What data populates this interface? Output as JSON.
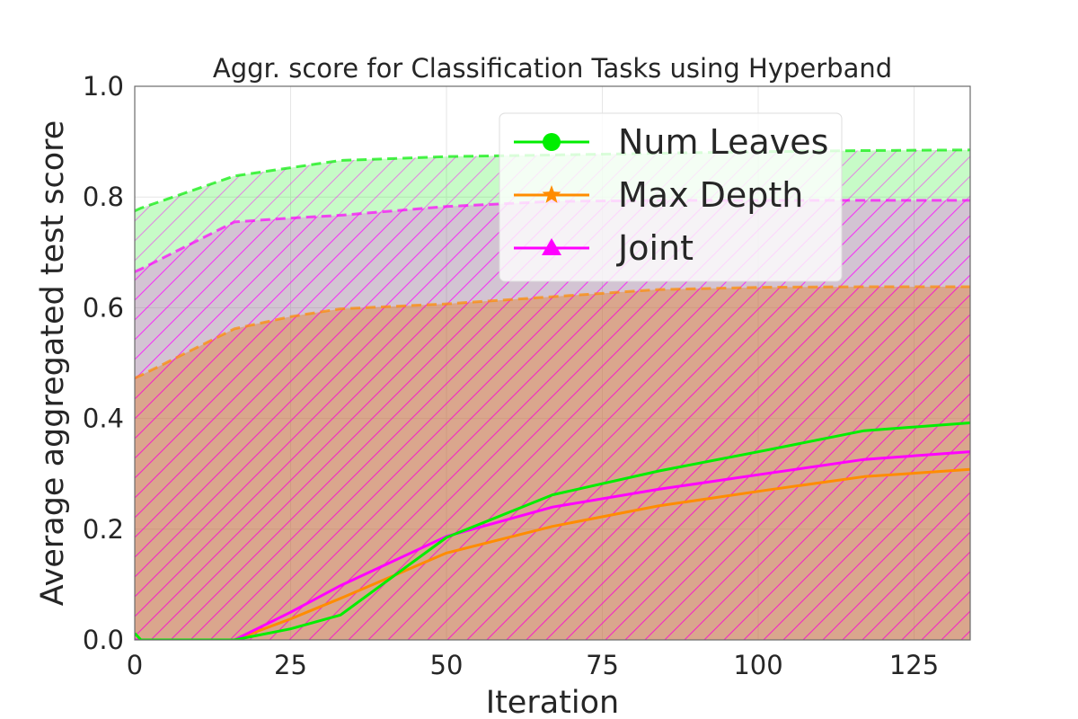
{
  "chart_data": {
    "type": "line",
    "title": "Aggr. score for Classification Tasks using Hyperband",
    "xlabel": "Iteration",
    "ylabel": "Average aggregated test score",
    "xlim": [
      0,
      134
    ],
    "ylim": [
      0,
      1
    ],
    "xticks": [
      0,
      25,
      50,
      75,
      100,
      125
    ],
    "yticks": [
      0.0,
      0.2,
      0.4,
      0.6,
      0.8,
      1.0
    ],
    "ytick_labels": [
      "0.0",
      "0.2",
      "0.4",
      "0.6",
      "0.8",
      "1.0"
    ],
    "grid": true,
    "legend_placement": "upper-center",
    "series": [
      {
        "name": "Num Leaves",
        "color": "#00ee00",
        "marker": "circle",
        "x": [
          0,
          1,
          16,
          25,
          33,
          50,
          67,
          84,
          101,
          117,
          134
        ],
        "mean": [
          0.012,
          0.0,
          0.0,
          0.02,
          0.045,
          0.185,
          0.262,
          0.305,
          0.342,
          0.378,
          0.392
        ],
        "upper": [
          0.775,
          0.78,
          0.838,
          0.853,
          0.866,
          0.873,
          0.876,
          0.879,
          0.882,
          0.884,
          0.885
        ],
        "lower": [
          0,
          0,
          0,
          0,
          0,
          0,
          0,
          0,
          0,
          0,
          0
        ]
      },
      {
        "name": "Max Depth",
        "color": "#ff8c00",
        "marker": "star",
        "x": [
          0,
          1,
          16,
          25,
          33,
          50,
          67,
          84,
          101,
          117,
          134
        ],
        "mean": [
          0.0,
          0.0,
          0.0,
          0.038,
          0.075,
          0.157,
          0.205,
          0.242,
          0.27,
          0.295,
          0.308
        ],
        "upper": [
          0.473,
          0.478,
          0.562,
          0.584,
          0.598,
          0.607,
          0.62,
          0.633,
          0.637,
          0.638,
          0.638
        ],
        "lower": [
          0,
          0,
          0,
          0,
          0,
          0,
          0,
          0,
          0,
          0,
          0
        ]
      },
      {
        "name": "Joint",
        "color": "#ff00ff",
        "marker": "triangle",
        "x": [
          0,
          1,
          16,
          25,
          33,
          50,
          67,
          84,
          101,
          117,
          134
        ],
        "mean": [
          0.0,
          0.0,
          0.0,
          0.05,
          0.098,
          0.187,
          0.24,
          0.272,
          0.3,
          0.326,
          0.34
        ],
        "upper": [
          0.665,
          0.67,
          0.755,
          0.762,
          0.767,
          0.783,
          0.792,
          0.794,
          0.794,
          0.794,
          0.794
        ],
        "lower": [
          0,
          0,
          0,
          0,
          0,
          0,
          0,
          0,
          0,
          0,
          0
        ]
      }
    ]
  }
}
